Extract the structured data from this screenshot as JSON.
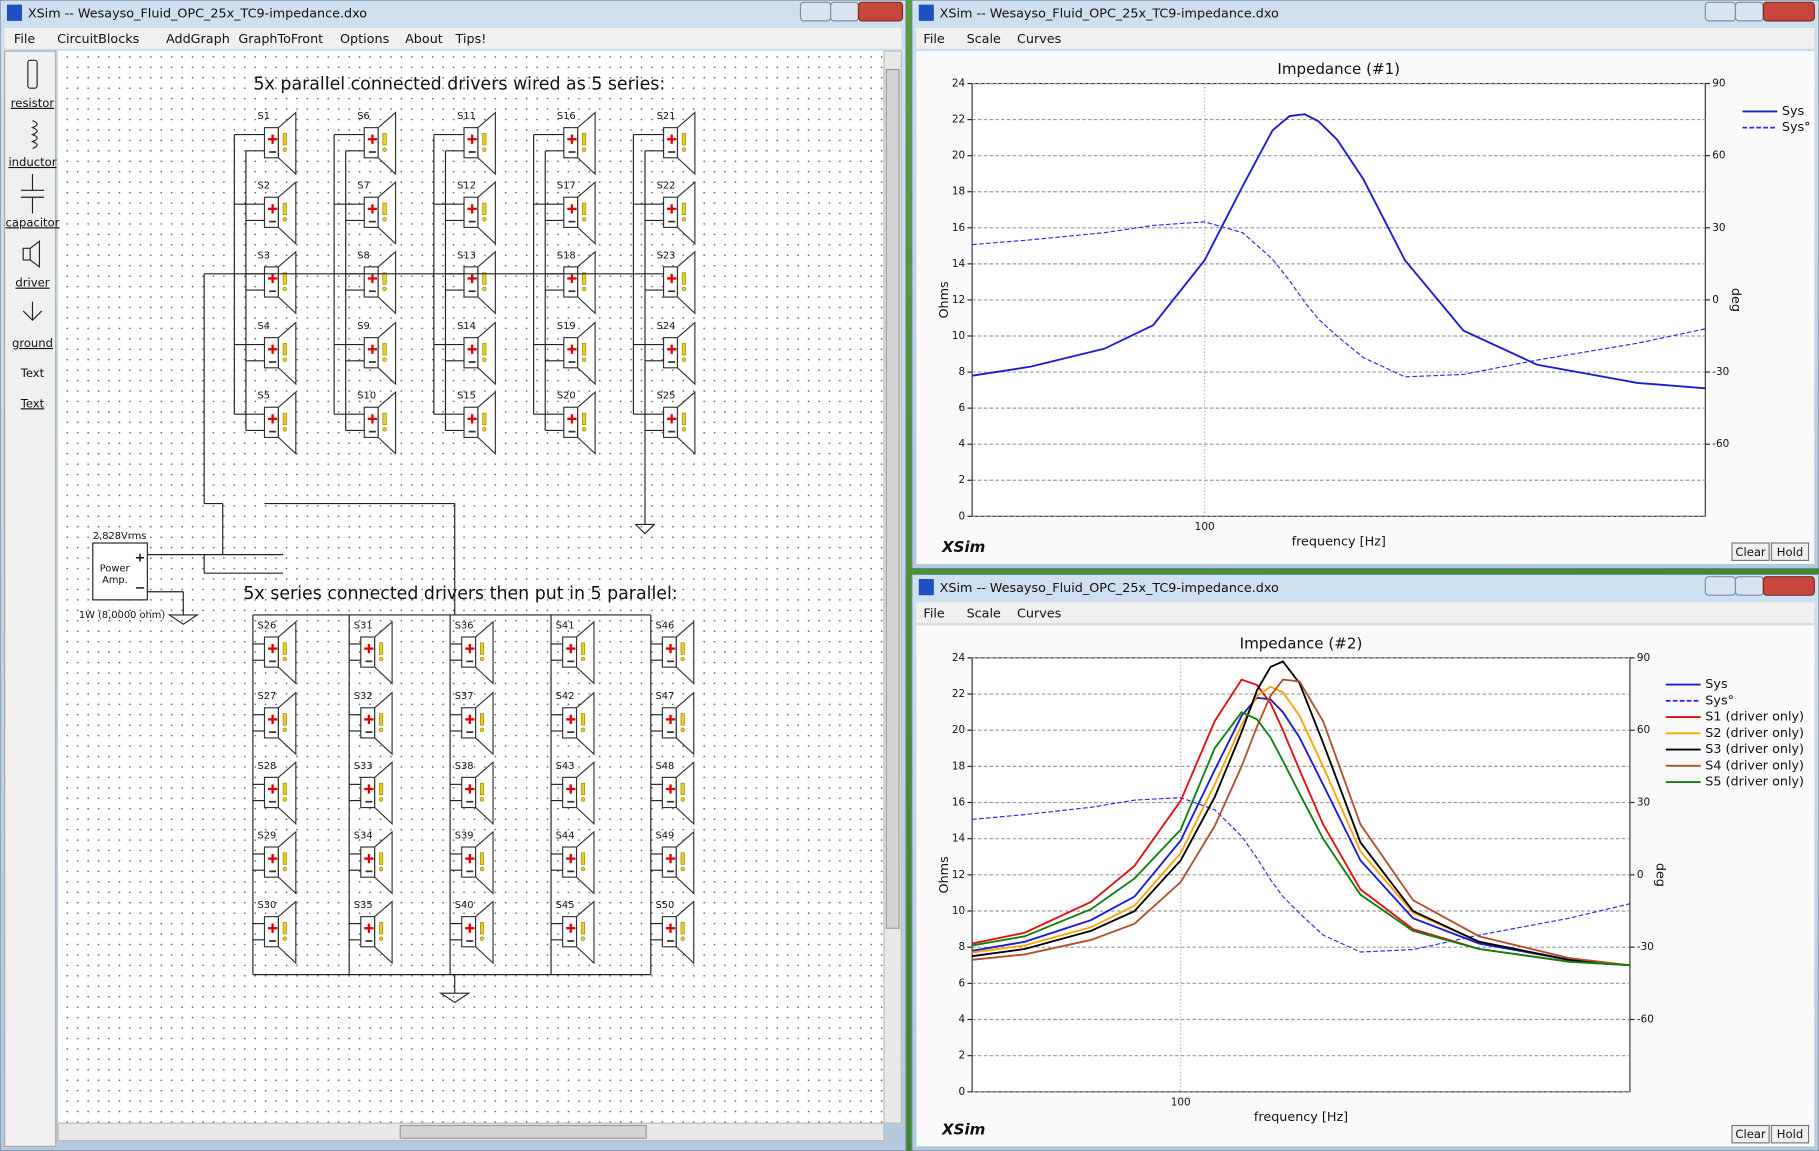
{
  "editor": {
    "title": "XSim -- Wesayso_Fluid_OPC_25x_TC9-impedance.dxo",
    "menu": [
      "File",
      "CircuitBlocks",
      "AddGraph",
      "GraphToFront",
      "Options",
      "About",
      "Tips!"
    ],
    "tools": [
      "resistor",
      "inductor",
      "capacitor",
      "driver",
      "ground",
      "Text",
      "Text"
    ],
    "headings": [
      "5x parallel connected drivers wired as 5 series:",
      "5x series connected drivers then put in 5 parallel:"
    ],
    "amp": {
      "voltage": "2,828Vrms",
      "name": [
        "Power",
        "Amp."
      ],
      "terminals": [
        "+",
        "−"
      ],
      "rating": "1W (8,0000 ohm)"
    },
    "drivers": [
      "S1",
      "S2",
      "S3",
      "S4",
      "S5",
      "S6",
      "S7",
      "S8",
      "S9",
      "S10",
      "S11",
      "S12",
      "S13",
      "S14",
      "S15",
      "S16",
      "S17",
      "S18",
      "S19",
      "S20",
      "S21",
      "S22",
      "S23",
      "S24",
      "S25",
      "S26",
      "S27",
      "S28",
      "S29",
      "S30",
      "S31",
      "S32",
      "S33",
      "S34",
      "S35",
      "S36",
      "S37",
      "S38",
      "S39",
      "S40",
      "S41",
      "S42",
      "S43",
      "S44",
      "S45",
      "S46",
      "S47",
      "S48",
      "S49",
      "S50"
    ]
  },
  "chart_data": [
    {
      "type": "line",
      "window_title": "XSim -- Wesayso_Fluid_OPC_25x_TC9-impedance.dxo",
      "menu": [
        "File",
        "Scale",
        "Curves"
      ],
      "title": "Impedance (#1)",
      "x_label": "frequency [Hz]",
      "y_label": "Ohms",
      "y2_label": "deg",
      "brand": "XSim",
      "buttons": [
        "Clear",
        "Hold"
      ],
      "xscale": "log",
      "xlim": [
        20,
        3200
      ],
      "xticks": [
        100
      ],
      "ylim": [
        0,
        24
      ],
      "yticks": [
        0,
        2,
        4,
        6,
        8,
        10,
        12,
        14,
        16,
        18,
        20,
        22,
        24
      ],
      "y2lim": [
        -90,
        90
      ],
      "y2ticks": [
        -60,
        -30,
        0,
        30,
        60,
        90
      ],
      "grid": true,
      "legend": "right",
      "x": [
        20,
        30,
        50,
        70,
        100,
        130,
        160,
        180,
        200,
        220,
        250,
        300,
        400,
        600,
        1000,
        2000,
        3200
      ],
      "series": [
        {
          "name": "Sys",
          "color": "#1c1cd0",
          "dash": "solid",
          "values": [
            7.8,
            8.3,
            9.3,
            10.6,
            14.2,
            18.3,
            21.4,
            22.2,
            22.3,
            21.9,
            20.9,
            18.7,
            14.2,
            10.3,
            8.4,
            7.4,
            7.1
          ]
        },
        {
          "name": "Sys°",
          "color": "#2a2aee",
          "dash": "dashed",
          "axis": "y2",
          "values": [
            23,
            25,
            28,
            31,
            32.5,
            28,
            17,
            8,
            -1,
            -8,
            -15,
            -24,
            -32,
            -31,
            -25,
            -18,
            -12
          ]
        }
      ]
    },
    {
      "type": "line",
      "window_title": "XSim -- Wesayso_Fluid_OPC_25x_TC9-impedance.dxo",
      "menu": [
        "File",
        "Scale",
        "Curves"
      ],
      "title": "Impedance (#2)",
      "x_label": "frequency [Hz]",
      "y_label": "Ohms",
      "y2_label": "deg",
      "brand": "XSim",
      "buttons": [
        "Clear",
        "Hold"
      ],
      "xscale": "log",
      "xlim": [
        20,
        3200
      ],
      "xticks": [
        100
      ],
      "ylim": [
        0,
        24
      ],
      "yticks": [
        0,
        2,
        4,
        6,
        8,
        10,
        12,
        14,
        16,
        18,
        20,
        22,
        24
      ],
      "y2lim": [
        -90,
        90
      ],
      "y2ticks": [
        -60,
        -30,
        0,
        30,
        60,
        90
      ],
      "grid": true,
      "legend": "right",
      "x": [
        20,
        30,
        50,
        70,
        100,
        130,
        160,
        180,
        200,
        220,
        250,
        300,
        400,
        600,
        1000,
        2000,
        3200
      ],
      "series": [
        {
          "name": "Sys",
          "color": "#1c1cd0",
          "dash": "solid",
          "values": [
            7.8,
            8.3,
            9.5,
            10.8,
            13.9,
            17.8,
            20.8,
            21.8,
            21.7,
            21.0,
            19.6,
            17.0,
            12.8,
            9.6,
            8.2,
            7.3,
            7.0
          ]
        },
        {
          "name": "Sys°",
          "color": "#2a2aee",
          "dash": "dashed",
          "axis": "y2",
          "values": [
            23,
            25,
            28,
            31,
            32,
            27,
            16,
            7,
            -2,
            -9,
            -16,
            -25,
            -32,
            -31,
            -25,
            -18,
            -12
          ]
        },
        {
          "name": "S1 (driver only)",
          "color": "#e01010",
          "dash": "solid",
          "values": [
            8.2,
            8.8,
            10.5,
            12.5,
            16.1,
            20.5,
            22.8,
            22.5,
            21.5,
            20.0,
            17.8,
            14.8,
            11.2,
            9.0,
            7.9,
            7.2,
            7.0
          ]
        },
        {
          "name": "S2 (driver only)",
          "color": "#ffa500",
          "dash": "solid",
          "values": [
            7.7,
            8.1,
            9.1,
            10.3,
            13.2,
            17.0,
            20.3,
            21.9,
            22.4,
            22.1,
            20.8,
            18.0,
            13.3,
            9.9,
            8.3,
            7.3,
            7.0
          ]
        },
        {
          "name": "S3 (driver only)",
          "color": "#000000",
          "dash": "solid",
          "values": [
            7.5,
            7.9,
            8.9,
            10.0,
            12.8,
            16.3,
            19.9,
            22.2,
            23.5,
            23.8,
            22.6,
            19.3,
            13.8,
            10.0,
            8.3,
            7.3,
            7.0
          ]
        },
        {
          "name": "S4 (driver only)",
          "color": "#b05030",
          "dash": "solid",
          "values": [
            7.3,
            7.6,
            8.4,
            9.3,
            11.6,
            14.7,
            18.0,
            20.2,
            21.9,
            22.8,
            22.7,
            20.5,
            14.8,
            10.6,
            8.6,
            7.4,
            7.0
          ]
        },
        {
          "name": "S5 (driver only)",
          "color": "#108010",
          "dash": "solid",
          "values": [
            8.1,
            8.6,
            10.1,
            11.8,
            14.5,
            19.0,
            21.0,
            20.6,
            19.6,
            18.3,
            16.5,
            14.0,
            10.9,
            8.9,
            7.9,
            7.2,
            7.0
          ]
        }
      ]
    }
  ]
}
